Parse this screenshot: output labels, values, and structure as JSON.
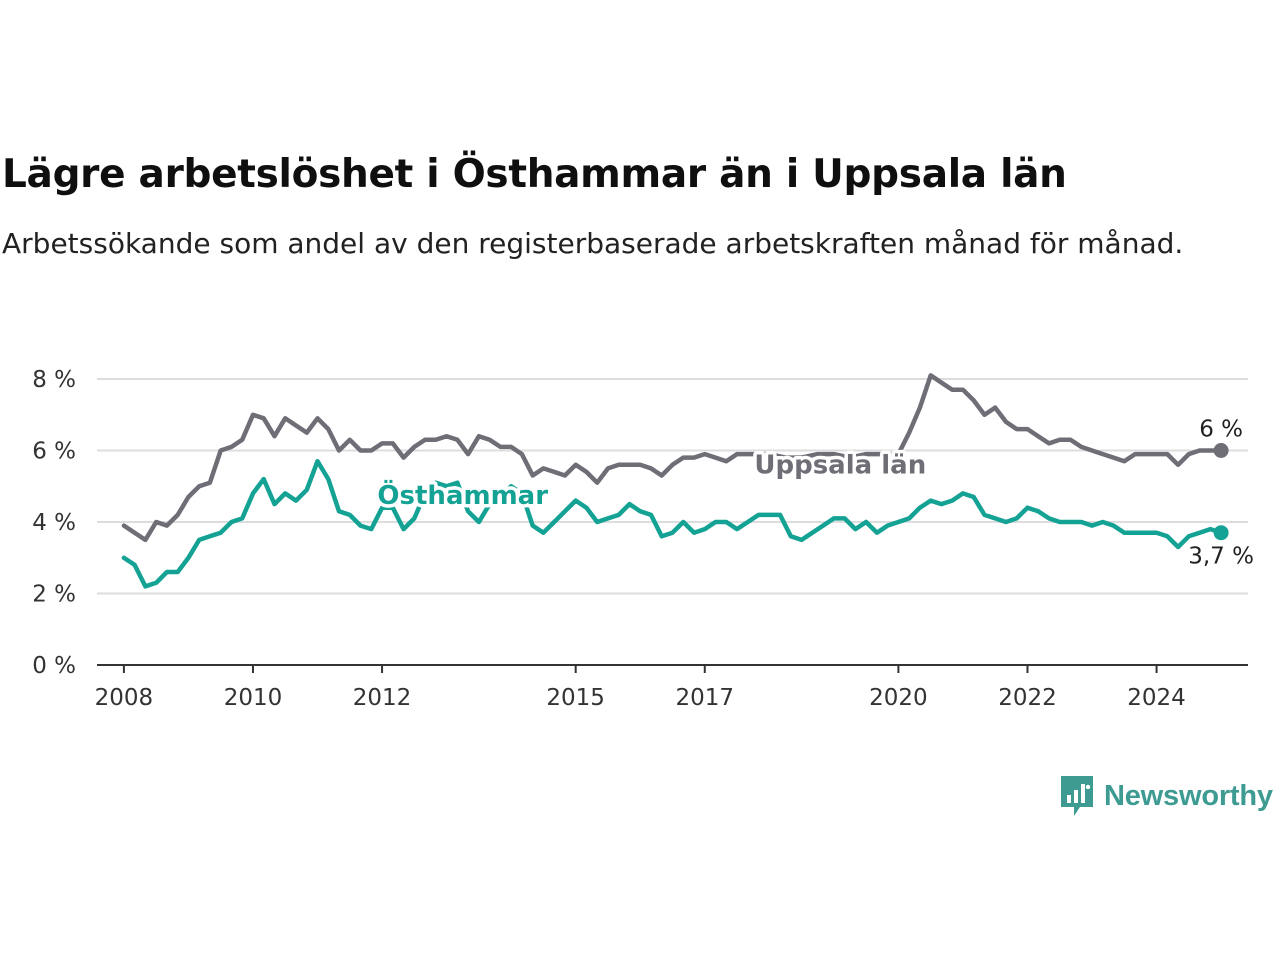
{
  "title": "Lägre arbetslöshet i Östhammar än i Uppsala län",
  "subtitle": "Arbetssökande som andel av den registerbaserade arbetskraften månad för månad.",
  "brand": "Newsworthy",
  "colors": {
    "uppsala": "#6f6e76",
    "osthammar": "#14a294",
    "grid": "#dddddd",
    "axis": "#333333"
  },
  "chart_data": {
    "type": "line",
    "title": "Lägre arbetslöshet i Östhammar än i Uppsala län",
    "subtitle": "Arbetssökande som andel av den registerbaserade arbetskraften månad för månad.",
    "x_ticks": [
      "2008",
      "2010",
      "2012",
      "2015",
      "2017",
      "2020",
      "2022",
      "2024"
    ],
    "y_ticks": [
      "0 %",
      "2 %",
      "4 %",
      "6 %",
      "8 %"
    ],
    "ylim": [
      0,
      8
    ],
    "xlim": [
      "2007-08",
      "2025-06"
    ],
    "grid": true,
    "series": [
      {
        "name": "Uppsala län",
        "end_label": "6 %",
        "points": [
          [
            "2008-01",
            3.9
          ],
          [
            "2008-03",
            3.7
          ],
          [
            "2008-05",
            3.5
          ],
          [
            "2008-07",
            4.0
          ],
          [
            "2008-09",
            3.9
          ],
          [
            "2008-11",
            4.2
          ],
          [
            "2009-01",
            4.7
          ],
          [
            "2009-03",
            5.0
          ],
          [
            "2009-05",
            5.1
          ],
          [
            "2009-07",
            6.0
          ],
          [
            "2009-09",
            6.1
          ],
          [
            "2009-11",
            6.3
          ],
          [
            "2010-01",
            7.0
          ],
          [
            "2010-03",
            6.9
          ],
          [
            "2010-05",
            6.4
          ],
          [
            "2010-07",
            6.9
          ],
          [
            "2010-09",
            6.7
          ],
          [
            "2010-11",
            6.5
          ],
          [
            "2011-01",
            6.9
          ],
          [
            "2011-03",
            6.6
          ],
          [
            "2011-05",
            6.0
          ],
          [
            "2011-07",
            6.3
          ],
          [
            "2011-09",
            6.0
          ],
          [
            "2011-11",
            6.0
          ],
          [
            "2012-01",
            6.2
          ],
          [
            "2012-03",
            6.2
          ],
          [
            "2012-05",
            5.8
          ],
          [
            "2012-07",
            6.1
          ],
          [
            "2012-09",
            6.3
          ],
          [
            "2012-11",
            6.3
          ],
          [
            "2013-01",
            6.4
          ],
          [
            "2013-03",
            6.3
          ],
          [
            "2013-05",
            5.9
          ],
          [
            "2013-07",
            6.4
          ],
          [
            "2013-09",
            6.3
          ],
          [
            "2013-11",
            6.1
          ],
          [
            "2014-01",
            6.1
          ],
          [
            "2014-03",
            5.9
          ],
          [
            "2014-05",
            5.3
          ],
          [
            "2014-07",
            5.5
          ],
          [
            "2014-09",
            5.4
          ],
          [
            "2014-11",
            5.3
          ],
          [
            "2015-01",
            5.6
          ],
          [
            "2015-03",
            5.4
          ],
          [
            "2015-05",
            5.1
          ],
          [
            "2015-07",
            5.5
          ],
          [
            "2015-09",
            5.6
          ],
          [
            "2015-11",
            5.6
          ],
          [
            "2016-01",
            5.6
          ],
          [
            "2016-03",
            5.5
          ],
          [
            "2016-05",
            5.3
          ],
          [
            "2016-07",
            5.6
          ],
          [
            "2016-09",
            5.8
          ],
          [
            "2016-11",
            5.8
          ],
          [
            "2017-01",
            5.9
          ],
          [
            "2017-03",
            5.8
          ],
          [
            "2017-05",
            5.7
          ],
          [
            "2017-07",
            5.9
          ],
          [
            "2017-09",
            5.9
          ],
          [
            "2017-11",
            5.9
          ],
          [
            "2018-01",
            5.9
          ],
          [
            "2018-04",
            5.8
          ],
          [
            "2018-07",
            5.8
          ],
          [
            "2018-10",
            5.9
          ],
          [
            "2019-01",
            5.9
          ],
          [
            "2019-04",
            5.8
          ],
          [
            "2019-07",
            5.9
          ],
          [
            "2019-10",
            5.9
          ],
          [
            "2020-01",
            5.9
          ],
          [
            "2020-03",
            6.5
          ],
          [
            "2020-05",
            7.2
          ],
          [
            "2020-07",
            8.1
          ],
          [
            "2020-09",
            7.9
          ],
          [
            "2020-11",
            7.7
          ],
          [
            "2021-01",
            7.7
          ],
          [
            "2021-03",
            7.4
          ],
          [
            "2021-05",
            7.0
          ],
          [
            "2021-07",
            7.2
          ],
          [
            "2021-09",
            6.8
          ],
          [
            "2021-11",
            6.6
          ],
          [
            "2022-01",
            6.6
          ],
          [
            "2022-03",
            6.4
          ],
          [
            "2022-05",
            6.2
          ],
          [
            "2022-07",
            6.3
          ],
          [
            "2022-09",
            6.3
          ],
          [
            "2022-11",
            6.1
          ],
          [
            "2023-01",
            6.0
          ],
          [
            "2023-03",
            5.9
          ],
          [
            "2023-05",
            5.8
          ],
          [
            "2023-07",
            5.7
          ],
          [
            "2023-09",
            5.9
          ],
          [
            "2023-11",
            5.9
          ],
          [
            "2024-01",
            5.9
          ],
          [
            "2024-03",
            5.9
          ],
          [
            "2024-05",
            5.6
          ],
          [
            "2024-07",
            5.9
          ],
          [
            "2024-09",
            6.0
          ],
          [
            "2024-11",
            6.0
          ],
          [
            "2025-01",
            6.0
          ]
        ]
      },
      {
        "name": "Östhammar",
        "end_label": "3,7 %",
        "points": [
          [
            "2008-01",
            3.0
          ],
          [
            "2008-03",
            2.8
          ],
          [
            "2008-05",
            2.2
          ],
          [
            "2008-07",
            2.3
          ],
          [
            "2008-09",
            2.6
          ],
          [
            "2008-11",
            2.6
          ],
          [
            "2009-01",
            3.0
          ],
          [
            "2009-03",
            3.5
          ],
          [
            "2009-05",
            3.6
          ],
          [
            "2009-07",
            3.7
          ],
          [
            "2009-09",
            4.0
          ],
          [
            "2009-11",
            4.1
          ],
          [
            "2010-01",
            4.8
          ],
          [
            "2010-03",
            5.2
          ],
          [
            "2010-05",
            4.5
          ],
          [
            "2010-07",
            4.8
          ],
          [
            "2010-09",
            4.6
          ],
          [
            "2010-11",
            4.9
          ],
          [
            "2011-01",
            5.7
          ],
          [
            "2011-03",
            5.2
          ],
          [
            "2011-05",
            4.3
          ],
          [
            "2011-07",
            4.2
          ],
          [
            "2011-09",
            3.9
          ],
          [
            "2011-11",
            3.8
          ],
          [
            "2012-01",
            4.4
          ],
          [
            "2012-03",
            4.4
          ],
          [
            "2012-05",
            3.8
          ],
          [
            "2012-07",
            4.1
          ],
          [
            "2012-09",
            4.8
          ],
          [
            "2012-11",
            5.1
          ],
          [
            "2013-01",
            5.0
          ],
          [
            "2013-03",
            5.1
          ],
          [
            "2013-05",
            4.3
          ],
          [
            "2013-07",
            4.0
          ],
          [
            "2013-09",
            4.5
          ],
          [
            "2013-11",
            4.7
          ],
          [
            "2014-01",
            5.0
          ],
          [
            "2014-03",
            4.8
          ],
          [
            "2014-05",
            3.9
          ],
          [
            "2014-07",
            3.7
          ],
          [
            "2014-09",
            4.0
          ],
          [
            "2014-11",
            4.3
          ],
          [
            "2015-01",
            4.6
          ],
          [
            "2015-03",
            4.4
          ],
          [
            "2015-05",
            4.0
          ],
          [
            "2015-07",
            4.1
          ],
          [
            "2015-09",
            4.2
          ],
          [
            "2015-11",
            4.5
          ],
          [
            "2016-01",
            4.3
          ],
          [
            "2016-03",
            4.2
          ],
          [
            "2016-05",
            3.6
          ],
          [
            "2016-07",
            3.7
          ],
          [
            "2016-09",
            4.0
          ],
          [
            "2016-11",
            3.7
          ],
          [
            "2017-01",
            3.8
          ],
          [
            "2017-03",
            4.0
          ],
          [
            "2017-05",
            4.0
          ],
          [
            "2017-07",
            3.8
          ],
          [
            "2017-09",
            4.0
          ],
          [
            "2017-11",
            4.2
          ],
          [
            "2018-01",
            4.2
          ],
          [
            "2018-03",
            4.2
          ],
          [
            "2018-05",
            3.6
          ],
          [
            "2018-07",
            3.5
          ],
          [
            "2018-09",
            3.7
          ],
          [
            "2018-11",
            3.9
          ],
          [
            "2019-01",
            4.1
          ],
          [
            "2019-03",
            4.1
          ],
          [
            "2019-05",
            3.8
          ],
          [
            "2019-07",
            4.0
          ],
          [
            "2019-09",
            3.7
          ],
          [
            "2019-11",
            3.9
          ],
          [
            "2020-01",
            4.0
          ],
          [
            "2020-03",
            4.1
          ],
          [
            "2020-05",
            4.4
          ],
          [
            "2020-07",
            4.6
          ],
          [
            "2020-09",
            4.5
          ],
          [
            "2020-11",
            4.6
          ],
          [
            "2021-01",
            4.8
          ],
          [
            "2021-03",
            4.7
          ],
          [
            "2021-05",
            4.2
          ],
          [
            "2021-07",
            4.1
          ],
          [
            "2021-09",
            4.0
          ],
          [
            "2021-11",
            4.1
          ],
          [
            "2022-01",
            4.4
          ],
          [
            "2022-03",
            4.3
          ],
          [
            "2022-05",
            4.1
          ],
          [
            "2022-07",
            4.0
          ],
          [
            "2022-09",
            4.0
          ],
          [
            "2022-11",
            4.0
          ],
          [
            "2023-01",
            3.9
          ],
          [
            "2023-03",
            4.0
          ],
          [
            "2023-05",
            3.9
          ],
          [
            "2023-07",
            3.7
          ],
          [
            "2023-09",
            3.7
          ],
          [
            "2023-11",
            3.7
          ],
          [
            "2024-01",
            3.7
          ],
          [
            "2024-03",
            3.6
          ],
          [
            "2024-05",
            3.3
          ],
          [
            "2024-07",
            3.6
          ],
          [
            "2024-09",
            3.7
          ],
          [
            "2024-11",
            3.8
          ],
          [
            "2025-01",
            3.7
          ]
        ]
      }
    ]
  }
}
